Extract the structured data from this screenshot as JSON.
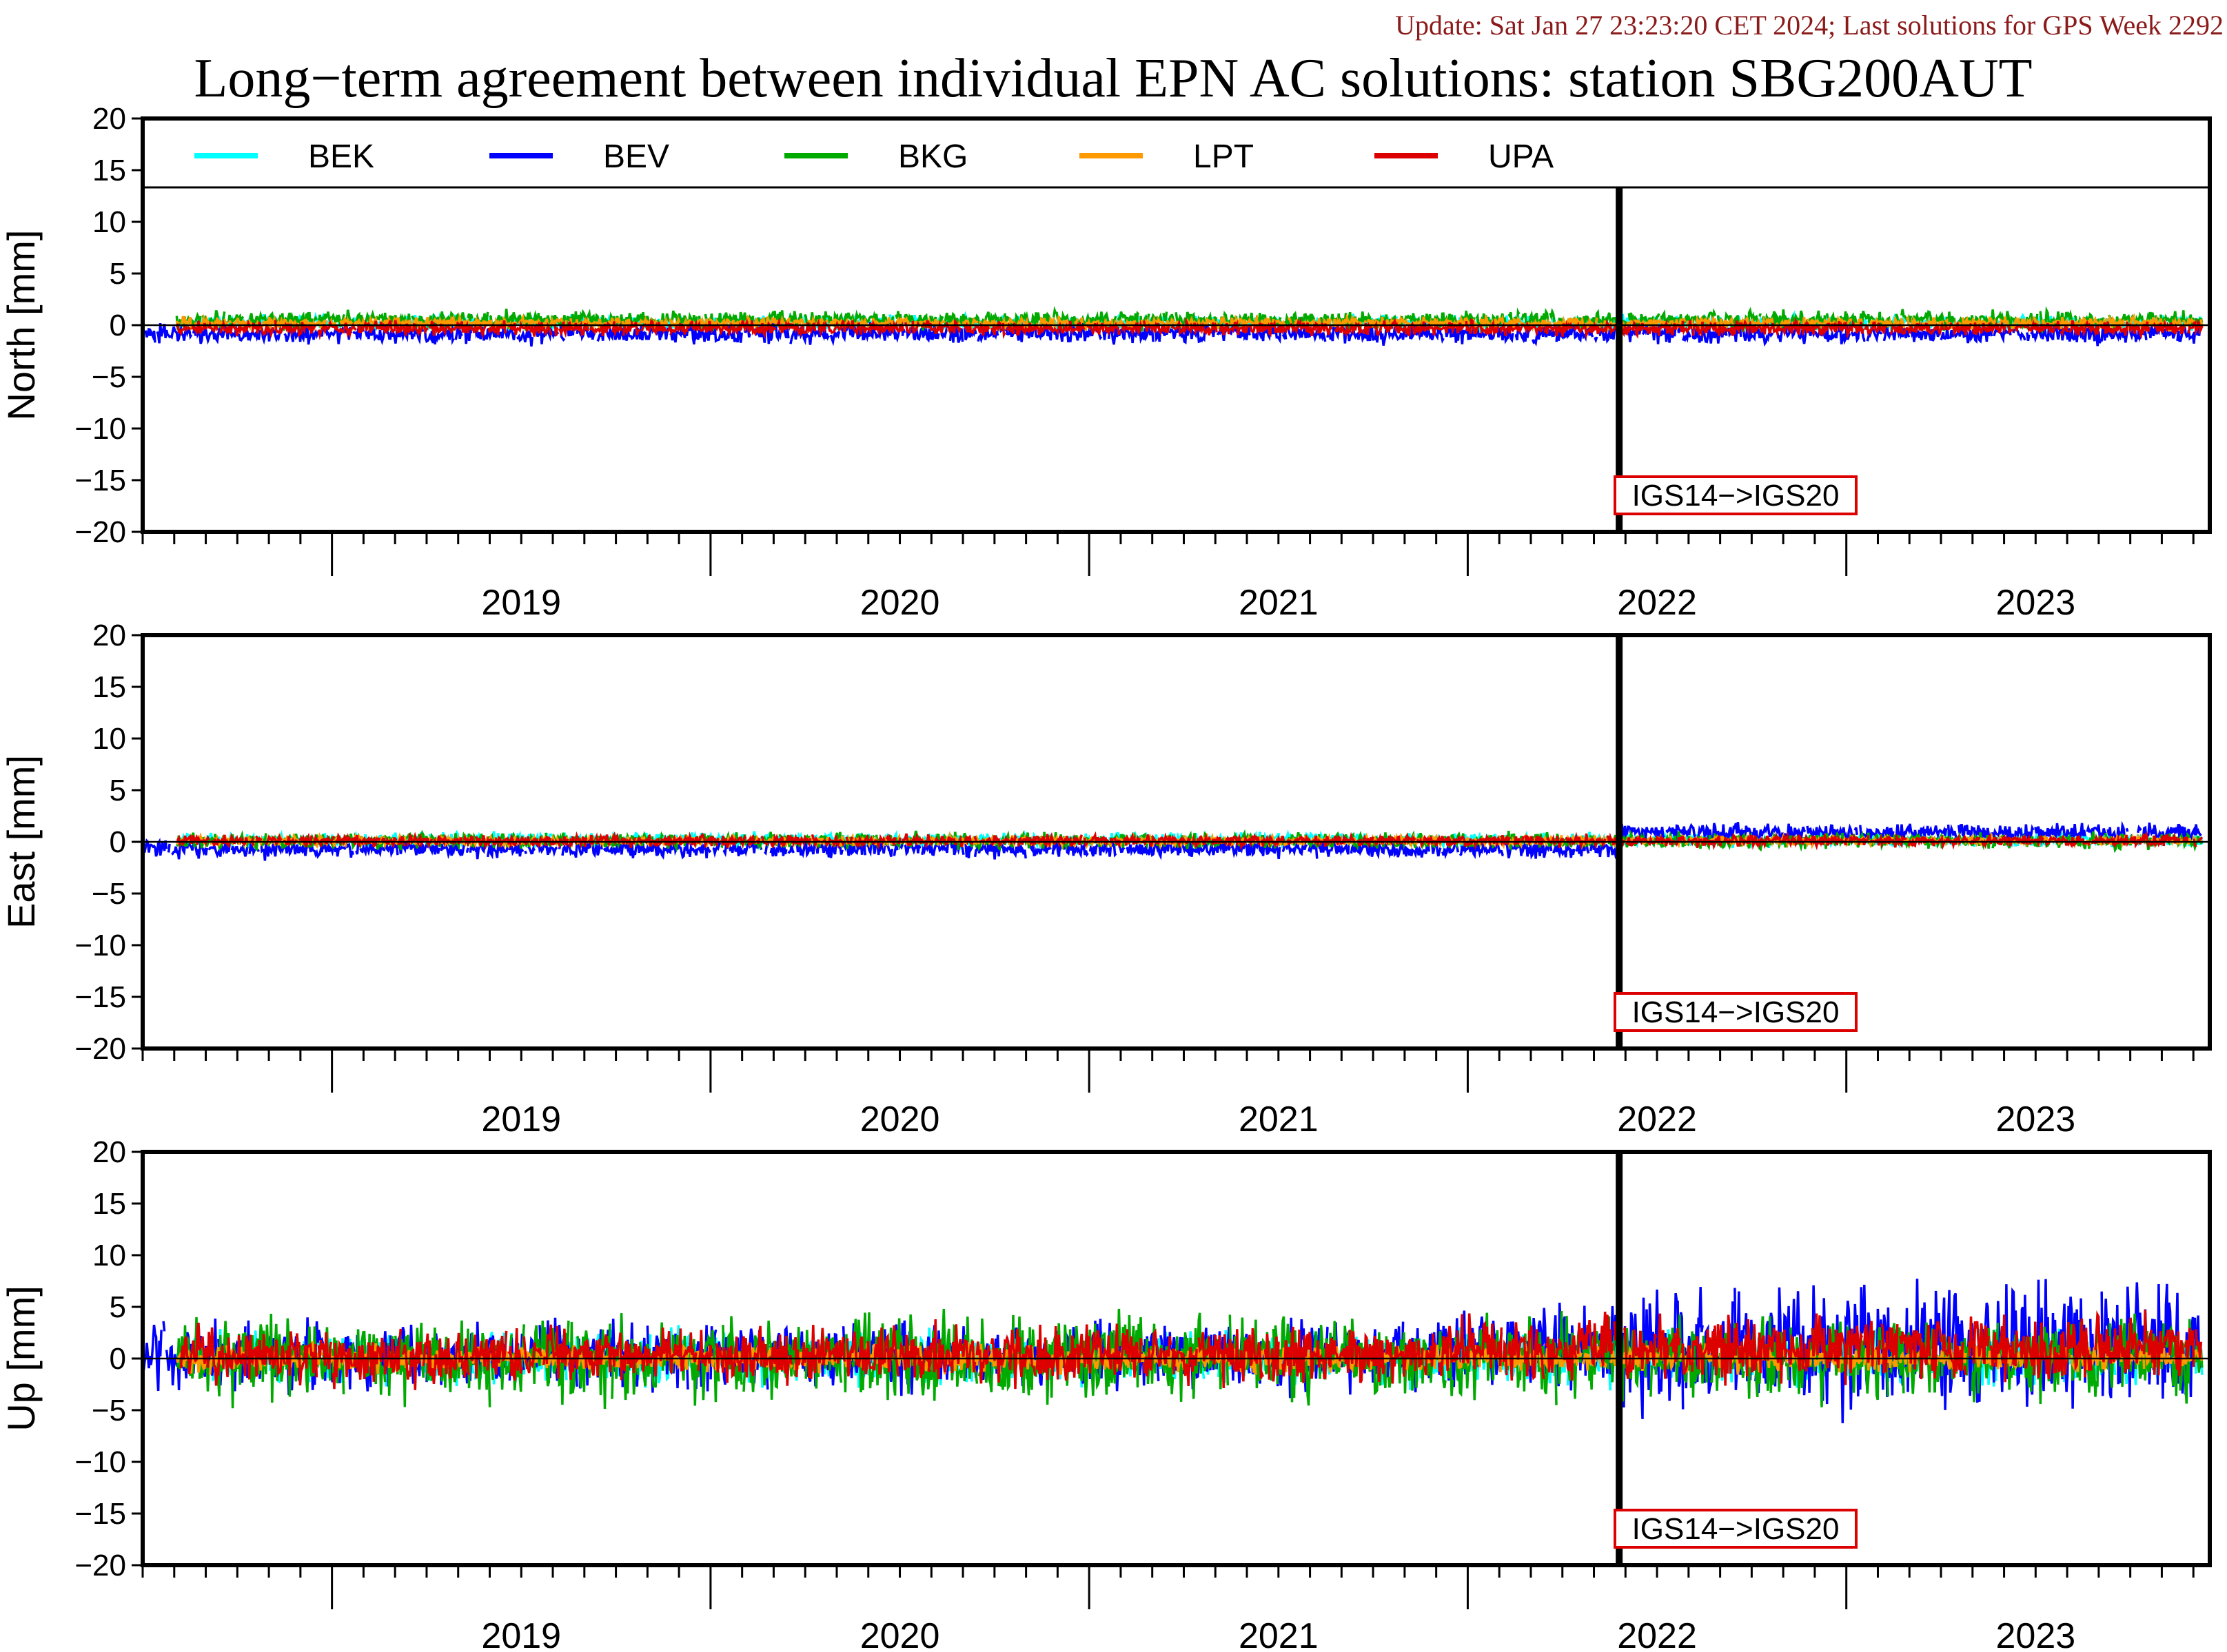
{
  "header": {
    "update_text": "Update: Sat Jan 27 23:23:20 CET 2024; Last solutions for GPS Week 2292",
    "title": "Long−term agreement between individual EPN AC solutions: station SBG200AUT"
  },
  "colors": {
    "BEK": "#00ffff",
    "BEV": "#0000ff",
    "BKG": "#00aa00",
    "LPT": "#ff9900",
    "UPA": "#dd0000",
    "update_text": "#8b1a1a",
    "transition_box": "#dd0000"
  },
  "chart_data": [
    {
      "type": "line",
      "panel": "north",
      "ylabel": "North [mm]",
      "ylim": [
        -20,
        20
      ],
      "yticks": [
        "20",
        "15",
        "10",
        "5",
        "0",
        "−5",
        "−10",
        "−15",
        "−20"
      ],
      "xlim": [
        2018.5,
        2023.96
      ],
      "xticks": [
        "2019",
        "2020",
        "2021",
        "2022",
        "2023"
      ],
      "reference_line_y": 0,
      "legend": [
        "BEK",
        "BEV",
        "BKG",
        "LPT",
        "UPA"
      ],
      "legend_placement": "top",
      "transition": {
        "x": 2022.4,
        "label": "IGS14−>IGS20"
      },
      "series": [
        {
          "name": "BEK",
          "mean": 0.2,
          "noise": 0.35,
          "x_start": 2018.59,
          "x_end": 2023.94
        },
        {
          "name": "BEV",
          "mean": -0.8,
          "noise": 0.45,
          "x_start": 2018.5,
          "x_end": 2023.94
        },
        {
          "name": "BKG",
          "mean": 0.5,
          "noise": 0.4,
          "x_start": 2018.59,
          "x_end": 2023.94
        },
        {
          "name": "LPT",
          "mean": 0.2,
          "noise": 0.25,
          "x_start": 2018.59,
          "x_end": 2023.94
        },
        {
          "name": "UPA",
          "mean": -0.3,
          "noise": 0.3,
          "x_start": 2018.59,
          "x_end": 2023.94
        }
      ]
    },
    {
      "type": "line",
      "panel": "east",
      "ylabel": "East [mm]",
      "ylim": [
        -20,
        20
      ],
      "yticks": [
        "20",
        "15",
        "10",
        "5",
        "0",
        "−5",
        "−10",
        "−15",
        "−20"
      ],
      "xlim": [
        2018.5,
        2023.96
      ],
      "xticks": [
        "2019",
        "2020",
        "2021",
        "2022",
        "2023"
      ],
      "reference_line_y": 0,
      "transition": {
        "x": 2022.4,
        "label": "IGS14−>IGS20"
      },
      "series": [
        {
          "name": "BEK",
          "mean": 0.2,
          "noise": 0.3,
          "x_start": 2018.59,
          "x_end": 2023.94
        },
        {
          "name": "BEV",
          "mean": -0.7,
          "noise": 0.4,
          "x_start": 2018.5,
          "x_end": 2023.94
        },
        {
          "name": "BKG",
          "mean": 0.1,
          "noise": 0.35,
          "x_start": 2018.59,
          "x_end": 2023.94
        },
        {
          "name": "LPT",
          "mean": 0.1,
          "noise": 0.2,
          "x_start": 2018.59,
          "x_end": 2023.94
        },
        {
          "name": "UPA",
          "mean": 0.1,
          "noise": 0.25,
          "x_start": 2018.59,
          "x_end": 2023.94
        }
      ]
    },
    {
      "type": "line",
      "panel": "up",
      "ylabel": "Up [mm]",
      "ylim": [
        -20,
        20
      ],
      "yticks": [
        "20",
        "15",
        "10",
        "5",
        "0",
        "−5",
        "−10",
        "−15",
        "−20"
      ],
      "xlim": [
        2018.5,
        2023.96
      ],
      "xticks": [
        "2019",
        "2020",
        "2021",
        "2022",
        "2023"
      ],
      "reference_line_y": 0,
      "transition": {
        "x": 2022.4,
        "label": "IGS14−>IGS20"
      },
      "series": [
        {
          "name": "BEK",
          "mean": 0.0,
          "noise": 1.2,
          "x_start": 2018.59,
          "x_end": 2023.94
        },
        {
          "name": "BEV",
          "mean": 0.3,
          "noise": 1.5,
          "x_start": 2018.5,
          "x_end": 2023.94
        },
        {
          "name": "BKG",
          "mean": 0.0,
          "noise": 1.8,
          "x_start": 2018.59,
          "x_end": 2023.94
        },
        {
          "name": "LPT",
          "mean": 0.0,
          "noise": 0.6,
          "x_start": 2018.59,
          "x_end": 2023.94
        },
        {
          "name": "UPA",
          "mean": 0.3,
          "noise": 1.2,
          "x_start": 2018.59,
          "x_end": 2023.94
        }
      ]
    }
  ]
}
